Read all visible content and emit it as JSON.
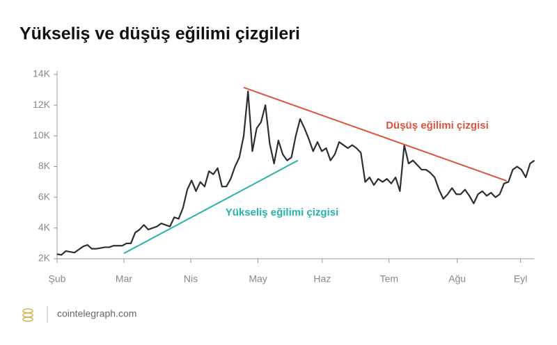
{
  "chart_data": {
    "type": "line",
    "title": "Yükseliş ve düşüş eğilimi çizgileri",
    "source": "cointelegraph.com",
    "xlim": [
      0,
      110
    ],
    "xticks": [
      {
        "value": 0,
        "label": "Şub"
      },
      {
        "value": 15.4,
        "label": "Mar"
      },
      {
        "value": 30.8,
        "label": "Nis"
      },
      {
        "value": 46.3,
        "label": "May"
      },
      {
        "value": 61.1,
        "label": "Haz"
      },
      {
        "value": 76.5,
        "label": "Tem"
      },
      {
        "value": 92.2,
        "label": "Ağu"
      },
      {
        "value": 106.8,
        "label": "Eyl"
      }
    ],
    "ylim": [
      2000,
      14000
    ],
    "yticks": [
      {
        "value": 2000,
        "label": "2K"
      },
      {
        "value": 4000,
        "label": "4K"
      },
      {
        "value": 6000,
        "label": "6K"
      },
      {
        "value": 8000,
        "label": "8K"
      },
      {
        "value": 10000,
        "label": "10K"
      },
      {
        "value": 12000,
        "label": "12K"
      },
      {
        "value": 14000,
        "label": "14K"
      }
    ],
    "series": [
      {
        "color": "#2b2f33",
        "values": [
          2300,
          2250,
          2500,
          2450,
          2400,
          2600,
          2800,
          2900,
          2650,
          2650,
          2700,
          2750,
          2750,
          2850,
          2850,
          2850,
          3000,
          3000,
          3700,
          3900,
          4200,
          3900,
          4000,
          4100,
          4300,
          4200,
          4100,
          4700,
          4600,
          5300,
          6500,
          7100,
          6400,
          7000,
          6700,
          7700,
          7500,
          7900,
          6700,
          6700,
          7200,
          8000,
          8600,
          10000,
          12900,
          9000,
          10500,
          10900,
          12000,
          9500,
          8200,
          9700,
          8800,
          8400,
          8600,
          10000,
          11100,
          10500,
          9800,
          9000,
          9600,
          9000,
          9200,
          8400,
          8800,
          9600,
          9400,
          9200,
          9400,
          9200,
          8900,
          7000,
          7300,
          6800,
          7200,
          7000,
          7200,
          6900,
          7300,
          6400,
          9400,
          8200,
          8400,
          8100,
          7800,
          7800,
          7600,
          7300,
          6500,
          5900,
          6200,
          6600,
          6200,
          6200,
          6500,
          6100,
          5600,
          6200,
          6400,
          6100,
          6300,
          6000,
          6200,
          6900,
          7000,
          7800,
          8000,
          7800,
          7300,
          8200,
          8400
        ]
      }
    ],
    "trend_lines": [
      {
        "name": "Yükseliş eğilimi çizgisi",
        "color": "#26b3a8",
        "x": [
          15.4,
          55.5
        ],
        "y": [
          2350,
          8400
        ]
      },
      {
        "name": "Düşüş eğilimi çizgisi",
        "color": "#e0513f",
        "x": [
          43.0,
          103.6
        ],
        "y": [
          13150,
          7070
        ]
      }
    ]
  }
}
